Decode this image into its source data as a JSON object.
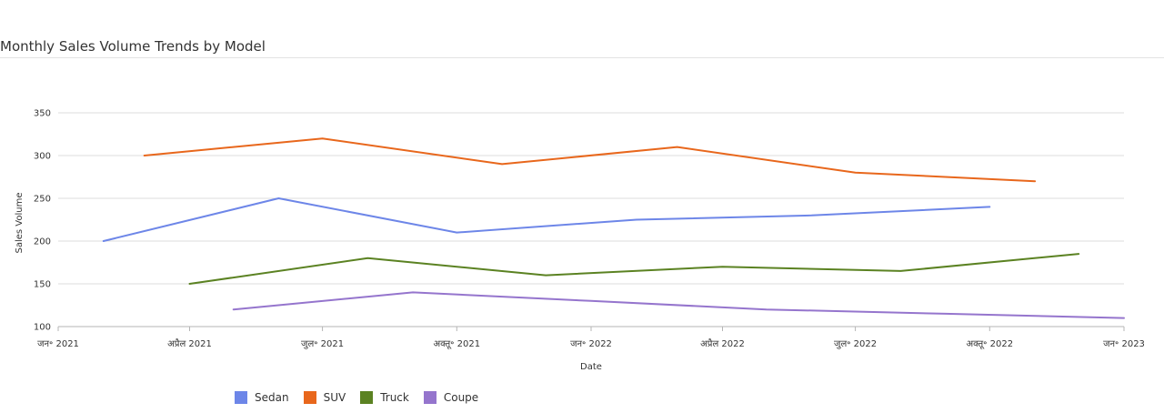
{
  "title": "Monthly Sales Volume Trends by Model",
  "chart_data": {
    "type": "line",
    "xlabel": "Date",
    "ylabel": "Sales Volume",
    "ylim": [
      100,
      350
    ],
    "yticks": [
      100,
      150,
      200,
      250,
      300,
      350
    ],
    "xlim": [
      "2021-01-01",
      "2023-01-01"
    ],
    "xticks": [
      {
        "date": "2021-01-01",
        "label": "जन॰ 2021"
      },
      {
        "date": "2021-04-01",
        "label": "अप्रैल 2021"
      },
      {
        "date": "2021-07-01",
        "label": "जुल॰ 2021"
      },
      {
        "date": "2021-10-01",
        "label": "अक्तू॰ 2021"
      },
      {
        "date": "2022-01-01",
        "label": "जन॰ 2022"
      },
      {
        "date": "2022-04-01",
        "label": "अप्रैल 2022"
      },
      {
        "date": "2022-07-01",
        "label": "जुल॰ 2022"
      },
      {
        "date": "2022-10-01",
        "label": "अक्तू॰ 2022"
      },
      {
        "date": "2023-01-01",
        "label": "जन॰ 2023"
      }
    ],
    "grid": true,
    "legend_position": "bottom",
    "series": [
      {
        "name": "Sedan",
        "color": "#6d86e8",
        "points": [
          [
            "2021-02-01",
            200
          ],
          [
            "2021-06-01",
            250
          ],
          [
            "2021-10-01",
            210
          ],
          [
            "2022-02-01",
            225
          ],
          [
            "2022-06-01",
            230
          ],
          [
            "2022-10-01",
            240
          ]
        ]
      },
      {
        "name": "SUV",
        "color": "#e8671c",
        "points": [
          [
            "2021-03-01",
            300
          ],
          [
            "2021-07-01",
            320
          ],
          [
            "2021-11-01",
            290
          ],
          [
            "2022-03-01",
            310
          ],
          [
            "2022-07-01",
            280
          ],
          [
            "2022-11-01",
            270
          ]
        ]
      },
      {
        "name": "Truck",
        "color": "#5b8222",
        "points": [
          [
            "2021-04-01",
            150
          ],
          [
            "2021-08-01",
            180
          ],
          [
            "2021-12-01",
            160
          ],
          [
            "2022-04-01",
            170
          ],
          [
            "2022-08-01",
            165
          ],
          [
            "2022-12-01",
            185
          ]
        ]
      },
      {
        "name": "Coupe",
        "color": "#9575cd",
        "points": [
          [
            "2021-05-01",
            120
          ],
          [
            "2021-09-01",
            140
          ],
          [
            "2022-01-01",
            130
          ],
          [
            "2022-05-01",
            120
          ],
          [
            "2022-09-01",
            115
          ],
          [
            "2023-01-01",
            110
          ]
        ]
      }
    ]
  }
}
